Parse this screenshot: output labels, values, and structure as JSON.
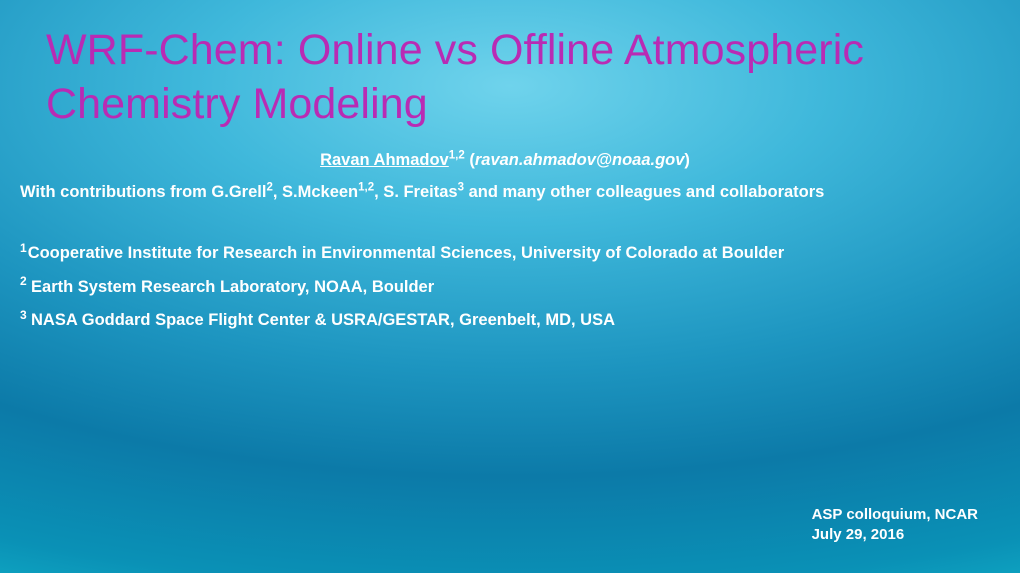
{
  "title": "WRF-Chem: Online vs Offline Atmospheric Chemistry Modeling",
  "author": {
    "name": "Ravan Ahmadov",
    "sup": "1,2",
    "email": "ravan.ahmadov@noaa.gov"
  },
  "contrib_pre": "With contributions from G.Grell",
  "contrib_s1": "2",
  "contrib_mid1": ", S.Mckeen",
  "contrib_s2": "1,2",
  "contrib_mid2": ", S. Freitas",
  "contrib_s3": "3",
  "contrib_post": " and many other colleagues and collaborators",
  "affils": {
    "a1n": "1",
    "a1": "Cooperative Institute for Research in Environmental Sciences, University of Colorado at  Boulder",
    "a2n": "2 ",
    "a2": "Earth System Research Laboratory, NOAA, Boulder",
    "a3n": "3 ",
    "a3": "NASA Goddard Space Flight Center & USRA/GESTAR, Greenbelt, MD, USA"
  },
  "footer": {
    "line1": "ASP colloquium, NCAR",
    "line2": "July 29, 2016"
  },
  "colors": {
    "title": "#b92bb4",
    "body": "#ffffff"
  }
}
